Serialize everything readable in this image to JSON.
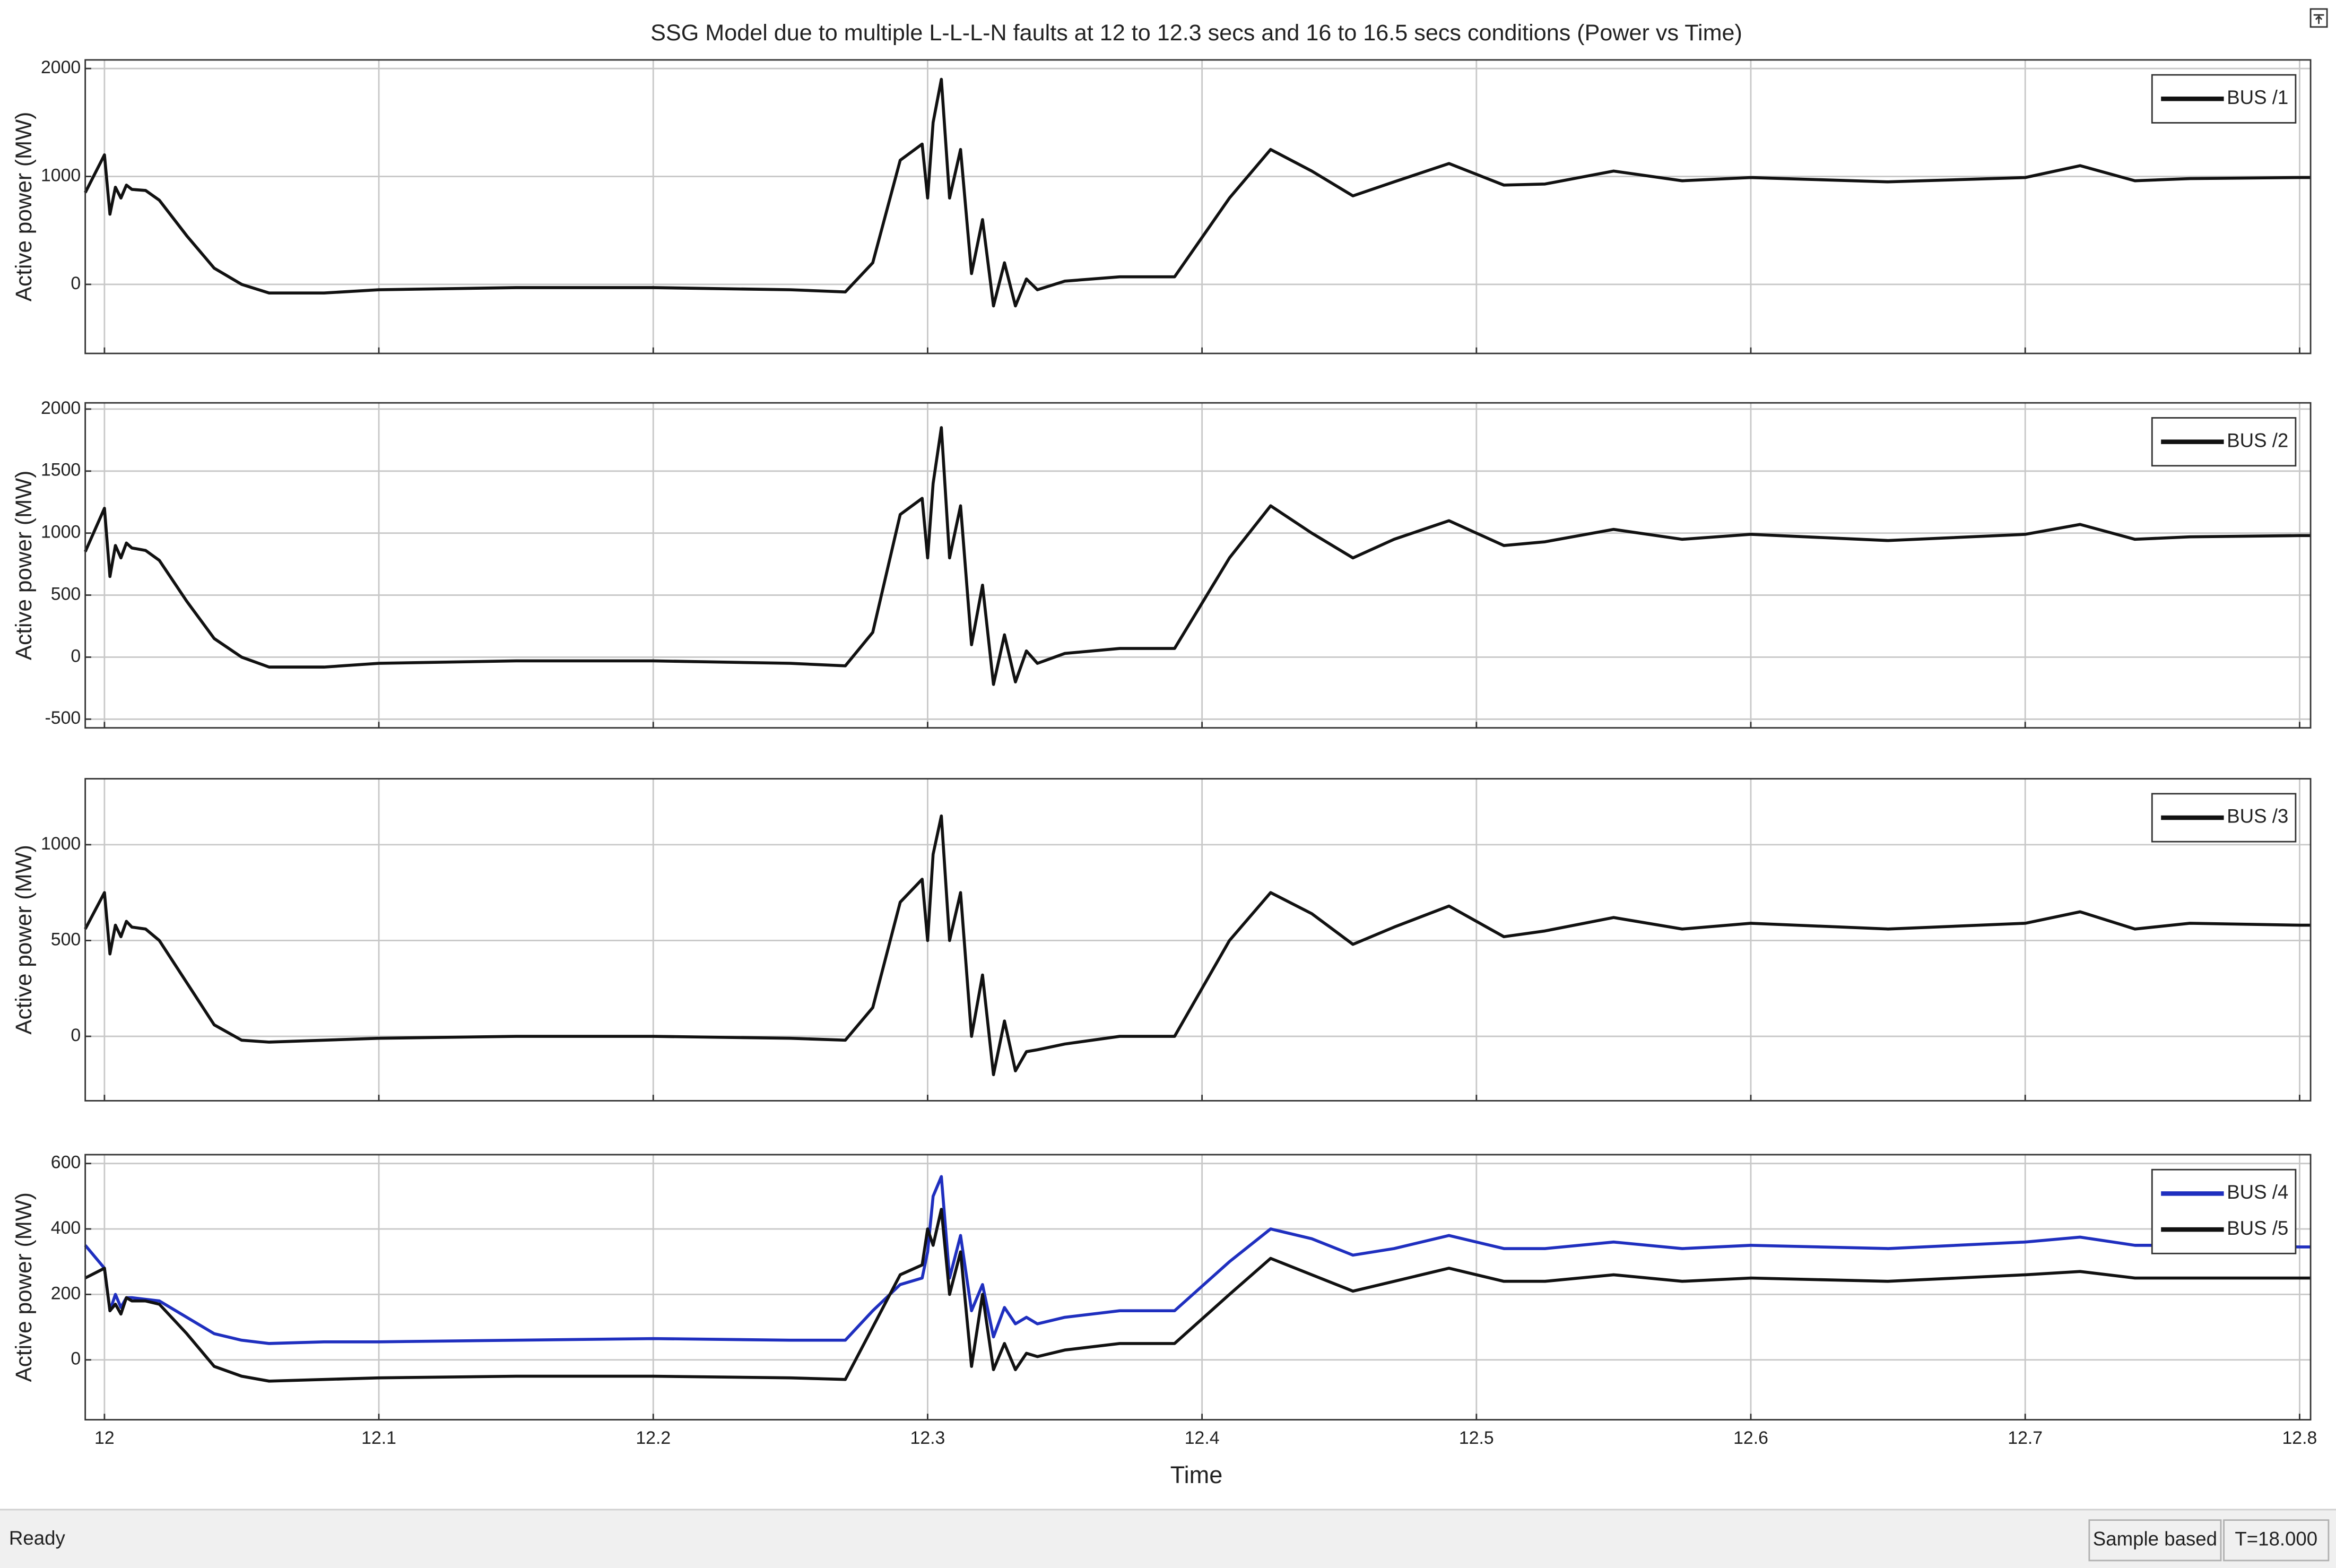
{
  "status": {
    "left": "Ready",
    "mode": "Sample based",
    "time": "T=18.000"
  },
  "chart_data": [
    {
      "type": "line",
      "title": "SSG Model  due to multiple L-L-L-N faults at 12 to 12.3 secs and 16 to 16.5 secs conditions (Power vs Time)",
      "y_label": "Active power (MW)",
      "x": [
        11.993,
        12.0,
        12.002,
        12.004,
        12.006,
        12.008,
        12.01,
        12.015,
        12.02,
        12.03,
        12.04,
        12.05,
        12.06,
        12.08,
        12.1,
        12.15,
        12.2,
        12.25,
        12.27,
        12.28,
        12.29,
        12.298,
        12.3,
        12.302,
        12.305,
        12.308,
        12.312,
        12.316,
        12.32,
        12.324,
        12.328,
        12.332,
        12.336,
        12.34,
        12.35,
        12.37,
        12.39,
        12.41,
        12.425,
        12.44,
        12.455,
        12.47,
        12.49,
        12.51,
        12.525,
        12.55,
        12.575,
        12.6,
        12.65,
        12.7,
        12.72,
        12.74,
        12.76,
        12.8,
        12.804
      ],
      "xlim": [
        11.993,
        12.804
      ],
      "xticks": [
        12,
        12.1,
        12.2,
        12.3,
        12.4,
        12.5,
        12.6,
        12.7,
        12.8
      ],
      "ylim": [
        -640,
        2080
      ],
      "yticks": [
        0,
        1000,
        2000
      ],
      "grid": true,
      "legend": "top-right",
      "series": [
        {
          "name": "BUS /1",
          "color": "#111111",
          "values": [
            850,
            1200,
            650,
            900,
            800,
            920,
            880,
            870,
            780,
            450,
            150,
            0,
            -80,
            -80,
            -50,
            -30,
            -30,
            -50,
            -70,
            200,
            1150,
            1300,
            800,
            1500,
            1900,
            800,
            1250,
            100,
            600,
            -200,
            200,
            -200,
            50,
            -50,
            30,
            70,
            70,
            800,
            1250,
            1050,
            820,
            950,
            1120,
            920,
            930,
            1050,
            960,
            990,
            950,
            990,
            1100,
            960,
            980,
            990,
            990
          ]
        }
      ]
    },
    {
      "type": "line",
      "y_label": "Active power (MW)",
      "x": [
        11.993,
        12.0,
        12.002,
        12.004,
        12.006,
        12.008,
        12.01,
        12.015,
        12.02,
        12.03,
        12.04,
        12.05,
        12.06,
        12.08,
        12.1,
        12.15,
        12.2,
        12.25,
        12.27,
        12.28,
        12.29,
        12.298,
        12.3,
        12.302,
        12.305,
        12.308,
        12.312,
        12.316,
        12.32,
        12.324,
        12.328,
        12.332,
        12.336,
        12.34,
        12.35,
        12.37,
        12.39,
        12.41,
        12.425,
        12.44,
        12.455,
        12.47,
        12.49,
        12.51,
        12.525,
        12.55,
        12.575,
        12.6,
        12.65,
        12.7,
        12.72,
        12.74,
        12.76,
        12.8,
        12.804
      ],
      "xlim": [
        11.993,
        12.804
      ],
      "xticks": [
        12,
        12.1,
        12.2,
        12.3,
        12.4,
        12.5,
        12.6,
        12.7,
        12.8
      ],
      "ylim": [
        -570,
        2050
      ],
      "yticks": [
        -500,
        0,
        500,
        1000,
        1500,
        2000
      ],
      "grid": true,
      "legend": "top-right",
      "series": [
        {
          "name": "BUS /2",
          "color": "#111111",
          "values": [
            850,
            1200,
            650,
            900,
            800,
            920,
            880,
            860,
            780,
            450,
            150,
            0,
            -80,
            -80,
            -50,
            -30,
            -30,
            -50,
            -70,
            200,
            1150,
            1280,
            800,
            1400,
            1850,
            800,
            1220,
            100,
            580,
            -220,
            180,
            -200,
            50,
            -50,
            30,
            70,
            70,
            800,
            1220,
            1000,
            800,
            950,
            1100,
            900,
            930,
            1030,
            950,
            990,
            940,
            990,
            1070,
            950,
            970,
            980,
            980
          ]
        }
      ]
    },
    {
      "type": "line",
      "y_label": "Active power (MW)",
      "x": [
        11.993,
        12.0,
        12.002,
        12.004,
        12.006,
        12.008,
        12.01,
        12.015,
        12.02,
        12.03,
        12.04,
        12.05,
        12.06,
        12.08,
        12.1,
        12.15,
        12.2,
        12.25,
        12.27,
        12.28,
        12.29,
        12.298,
        12.3,
        12.302,
        12.305,
        12.308,
        12.312,
        12.316,
        12.32,
        12.324,
        12.328,
        12.332,
        12.336,
        12.34,
        12.35,
        12.37,
        12.39,
        12.41,
        12.425,
        12.44,
        12.455,
        12.47,
        12.49,
        12.51,
        12.525,
        12.55,
        12.575,
        12.6,
        12.65,
        12.7,
        12.72,
        12.74,
        12.76,
        12.8,
        12.804
      ],
      "xlim": [
        11.993,
        12.804
      ],
      "xticks": [
        12,
        12.1,
        12.2,
        12.3,
        12.4,
        12.5,
        12.6,
        12.7,
        12.8
      ],
      "ylim": [
        -336,
        1344
      ],
      "yticks": [
        0,
        500,
        1000
      ],
      "grid": true,
      "legend": "top-right",
      "series": [
        {
          "name": "BUS /3",
          "color": "#111111",
          "values": [
            560,
            750,
            430,
            580,
            520,
            600,
            570,
            560,
            500,
            280,
            60,
            -20,
            -30,
            -20,
            -10,
            0,
            0,
            -10,
            -20,
            150,
            700,
            820,
            500,
            950,
            1150,
            500,
            750,
            0,
            320,
            -200,
            80,
            -180,
            -80,
            -70,
            -40,
            0,
            0,
            500,
            750,
            640,
            480,
            570,
            680,
            520,
            550,
            620,
            560,
            590,
            560,
            590,
            650,
            560,
            590,
            580,
            580
          ]
        }
      ]
    },
    {
      "type": "line",
      "y_label": "Active power (MW)",
      "x_label": "Time",
      "x": [
        11.993,
        12.0,
        12.002,
        12.004,
        12.006,
        12.008,
        12.01,
        12.015,
        12.02,
        12.03,
        12.04,
        12.05,
        12.06,
        12.08,
        12.1,
        12.15,
        12.2,
        12.25,
        12.27,
        12.28,
        12.29,
        12.298,
        12.3,
        12.302,
        12.305,
        12.308,
        12.312,
        12.316,
        12.32,
        12.324,
        12.328,
        12.332,
        12.336,
        12.34,
        12.35,
        12.37,
        12.39,
        12.41,
        12.425,
        12.44,
        12.455,
        12.47,
        12.49,
        12.51,
        12.525,
        12.55,
        12.575,
        12.6,
        12.65,
        12.7,
        12.72,
        12.74,
        12.76,
        12.8,
        12.804
      ],
      "xlim": [
        11.993,
        12.804
      ],
      "xticks": [
        12,
        12.1,
        12.2,
        12.3,
        12.4,
        12.5,
        12.6,
        12.7,
        12.8
      ],
      "ylim": [
        -183,
        627
      ],
      "yticks": [
        0,
        200,
        400,
        600
      ],
      "grid": true,
      "legend": "top-right",
      "series": [
        {
          "name": "BUS /4",
          "color": "#1f2fbf",
          "values": [
            350,
            280,
            150,
            200,
            160,
            190,
            190,
            185,
            180,
            130,
            80,
            60,
            50,
            55,
            55,
            60,
            65,
            60,
            60,
            150,
            230,
            250,
            330,
            500,
            560,
            250,
            380,
            150,
            230,
            70,
            160,
            110,
            130,
            110,
            130,
            150,
            150,
            300,
            400,
            370,
            320,
            340,
            380,
            340,
            340,
            360,
            340,
            350,
            340,
            360,
            375,
            350,
            350,
            345,
            345
          ]
        },
        {
          "name": "BUS /5",
          "color": "#111111",
          "values": [
            250,
            280,
            150,
            170,
            140,
            190,
            180,
            180,
            170,
            80,
            -20,
            -50,
            -65,
            -60,
            -55,
            -50,
            -50,
            -55,
            -60,
            100,
            260,
            290,
            400,
            350,
            460,
            200,
            330,
            -20,
            200,
            -30,
            50,
            -30,
            20,
            10,
            30,
            50,
            50,
            200,
            310,
            260,
            210,
            240,
            280,
            240,
            240,
            260,
            240,
            250,
            240,
            260,
            270,
            250,
            250,
            250,
            250
          ]
        }
      ]
    }
  ]
}
